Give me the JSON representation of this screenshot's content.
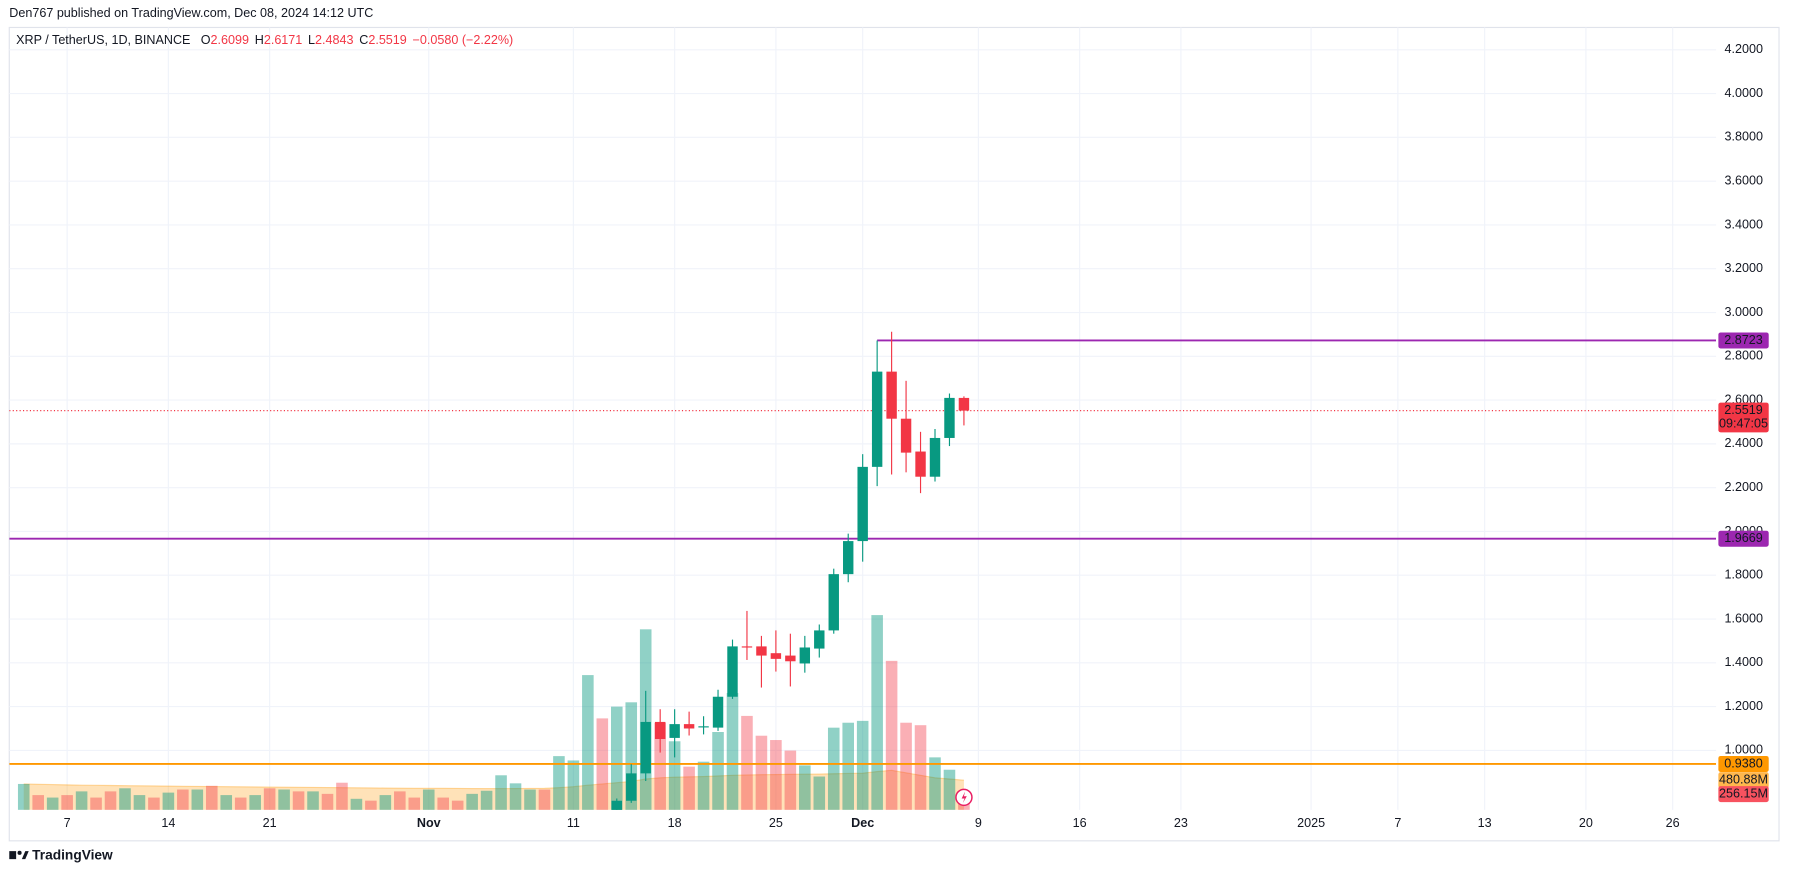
{
  "publisher_line": "Den767 published on TradingView.com, Dec 08, 2024 14:12 UTC",
  "footer_brand": "TradingView",
  "chart_data": {
    "type": "candlestick",
    "symbol": "XRP / TetherUS, 1D, BINANCE",
    "header_fields": [
      {
        "label": "O",
        "value": "2.6099"
      },
      {
        "label": "H",
        "value": "2.6171"
      },
      {
        "label": "L",
        "value": "2.4843"
      },
      {
        "label": "C",
        "value": "2.5519"
      }
    ],
    "change": "−0.0580 (−2.22%)",
    "up_color": "#089981",
    "down_color": "#f23645",
    "xlim": [
      "2024-10-03",
      "2025-01-29"
    ],
    "ylim": [
      0.728,
      4.302
    ],
    "yticks": [
      {
        "value": 1.0,
        "label": "1.0000"
      },
      {
        "value": 1.2,
        "label": "1.2000"
      },
      {
        "value": 1.4,
        "label": "1.4000"
      },
      {
        "value": 1.6,
        "label": "1.6000"
      },
      {
        "value": 1.8,
        "label": "1.8000"
      },
      {
        "value": 2.0,
        "label": "2.0000"
      },
      {
        "value": 2.2,
        "label": "2.2000"
      },
      {
        "value": 2.4,
        "label": "2.4000"
      },
      {
        "value": 2.6,
        "label": "2.6000"
      },
      {
        "value": 2.8,
        "label": "2.8000"
      },
      {
        "value": 3.0,
        "label": "3.0000"
      },
      {
        "value": 3.2,
        "label": "3.2000"
      },
      {
        "value": 3.4,
        "label": "3.4000"
      },
      {
        "value": 3.6,
        "label": "3.6000"
      },
      {
        "value": 3.8,
        "label": "3.8000"
      },
      {
        "value": 4.0,
        "label": "4.0000"
      },
      {
        "value": 4.2,
        "label": "4.2000"
      }
    ],
    "xticks": [
      {
        "value": "2024-10-07",
        "label": "7"
      },
      {
        "value": "2024-10-14",
        "label": "14"
      },
      {
        "value": "2024-10-21",
        "label": "21"
      },
      {
        "value": "2024-11-01",
        "label": "Nov"
      },
      {
        "value": "2024-11-11",
        "label": "11"
      },
      {
        "value": "2024-11-18",
        "label": "18"
      },
      {
        "value": "2024-11-25",
        "label": "25"
      },
      {
        "value": "2024-12-01",
        "label": "Dec"
      },
      {
        "value": "2024-12-09",
        "label": "9"
      },
      {
        "value": "2024-12-16",
        "label": "16"
      },
      {
        "value": "2024-12-23",
        "label": "23"
      },
      {
        "value": "2025-01-01",
        "label": "2025"
      },
      {
        "value": "2025-01-07",
        "label": "7"
      },
      {
        "value": "2025-01-13",
        "label": "13"
      },
      {
        "value": "2025-01-20",
        "label": "20"
      },
      {
        "value": "2025-01-26",
        "label": "26"
      }
    ],
    "grid": true,
    "x": [
      "2024-11-14",
      "2024-11-15",
      "2024-11-16",
      "2024-11-17",
      "2024-11-18",
      "2024-11-19",
      "2024-11-20",
      "2024-11-21",
      "2024-11-22",
      "2024-11-23",
      "2024-11-24",
      "2024-11-25",
      "2024-11-26",
      "2024-11-27",
      "2024-11-28",
      "2024-11-29",
      "2024-11-30",
      "2024-12-01",
      "2024-12-02",
      "2024-12-03",
      "2024-12-04",
      "2024-12-05",
      "2024-12-06",
      "2024-12-07",
      "2024-12-08"
    ],
    "open": [
      0.71,
      0.77,
      0.895,
      1.13,
      1.057,
      1.12,
      1.105,
      1.104,
      1.245,
      1.475,
      1.475,
      1.444,
      1.433,
      1.397,
      1.465,
      1.548,
      1.805,
      1.956,
      2.295,
      2.73,
      2.515,
      2.365,
      2.25,
      2.427,
      2.6099
    ],
    "high": [
      0.78,
      0.937,
      1.272,
      1.188,
      1.188,
      1.177,
      1.156,
      1.277,
      1.506,
      1.637,
      1.523,
      1.548,
      1.533,
      1.523,
      1.575,
      1.83,
      1.99,
      2.353,
      2.8723,
      2.912,
      2.688,
      2.455,
      2.468,
      2.63,
      2.6171
    ],
    "low": [
      0.69,
      0.76,
      0.86,
      0.99,
      0.968,
      1.068,
      1.073,
      1.089,
      1.235,
      1.413,
      1.287,
      1.36,
      1.292,
      1.355,
      1.424,
      1.533,
      1.768,
      1.862,
      2.207,
      2.26,
      2.27,
      2.175,
      2.228,
      2.39,
      2.4843
    ],
    "close": [
      0.77,
      0.895,
      1.13,
      1.052,
      1.12,
      1.1,
      1.11,
      1.245,
      1.475,
      1.47,
      1.433,
      1.418,
      1.407,
      1.47,
      1.548,
      1.805,
      1.956,
      2.295,
      2.73,
      2.515,
      2.36,
      2.25,
      2.427,
      2.61,
      2.5519
    ],
    "levels": [
      {
        "value": 2.8723,
        "label": "2.8723",
        "color": "#9c27b0",
        "start": "2024-12-02"
      },
      {
        "value": 1.9669,
        "label": "1.9669",
        "color": "#9c27b0"
      },
      {
        "value": 0.938,
        "label": "0.9380",
        "color": "#ff9800"
      }
    ],
    "last_price": {
      "value": 2.5519,
      "countdown": "09:47:05"
    },
    "volume": {
      "vlim": [
        0,
        12650
      ],
      "x": [
        "2024-10-04",
        "2024-10-05",
        "2024-10-06",
        "2024-10-07",
        "2024-10-08",
        "2024-10-09",
        "2024-10-10",
        "2024-10-11",
        "2024-10-12",
        "2024-10-13",
        "2024-10-14",
        "2024-10-15",
        "2024-10-16",
        "2024-10-17",
        "2024-10-18",
        "2024-10-19",
        "2024-10-20",
        "2024-10-21",
        "2024-10-22",
        "2024-10-23",
        "2024-10-24",
        "2024-10-25",
        "2024-10-26",
        "2024-10-27",
        "2024-10-28",
        "2024-10-29",
        "2024-10-30",
        "2024-10-31",
        "2024-11-01",
        "2024-11-02",
        "2024-11-03",
        "2024-11-04",
        "2024-11-05",
        "2024-11-06",
        "2024-11-07",
        "2024-11-08",
        "2024-11-09",
        "2024-11-10",
        "2024-11-11",
        "2024-11-12",
        "2024-11-13",
        "2024-11-14",
        "2024-11-15",
        "2024-11-16",
        "2024-11-17",
        "2024-11-18",
        "2024-11-19",
        "2024-11-20",
        "2024-11-21",
        "2024-11-22",
        "2024-11-23",
        "2024-11-24",
        "2024-11-25",
        "2024-11-26",
        "2024-11-27",
        "2024-11-28",
        "2024-11-29",
        "2024-11-30",
        "2024-12-01",
        "2024-12-02",
        "2024-12-03",
        "2024-12-04",
        "2024-12-05",
        "2024-12-06",
        "2024-12-07",
        "2024-12-08"
      ],
      "values": [
        420,
        240,
        200,
        240,
        300,
        200,
        300,
        350,
        240,
        200,
        280,
        330,
        330,
        390,
        240,
        200,
        240,
        350,
        330,
        300,
        300,
        260,
        440,
        180,
        150,
        240,
        300,
        200,
        330,
        200,
        150,
        260,
        310,
        560,
        430,
        330,
        330,
        870,
        800,
        2180,
        1480,
        1670,
        1740,
        2920,
        1410,
        1110,
        700,
        780,
        1260,
        1890,
        1520,
        1200,
        1130,
        960,
        720,
        540,
        1330,
        1410,
        1440,
        3150,
        2410,
        1410,
        1370,
        850,
        650,
        256.15
      ],
      "colors": [
        "#08998173",
        "#f2364566",
        "#08998173",
        "#f2364566",
        "#08998173",
        "#f2364566",
        "#f2364566",
        "#08998173",
        "#08998173",
        "#f2364566",
        "#08998173",
        "#f2364566",
        "#08998173",
        "#f2364566",
        "#08998173",
        "#f2364566",
        "#08998173",
        "#f2364566",
        "#08998173",
        "#f2364566",
        "#08998173",
        "#f2364566",
        "#f2364566",
        "#08998173",
        "#f2364566",
        "#08998173",
        "#f2364566",
        "#f2364566",
        "#08998173",
        "#f2364566",
        "#f2364566",
        "#08998173",
        "#08998173",
        "#08998173",
        "#08998173",
        "#08998173",
        "#f2364566",
        "#08998173",
        "#08998173",
        "#08998173",
        "#f2364566",
        "#08998173",
        "#08998173",
        "#08998173",
        "#f2364566",
        "#08998173",
        "#f2364566",
        "#08998173",
        "#08998173",
        "#08998173",
        "#f2364566",
        "#f2364566",
        "#f2364566",
        "#f2364566",
        "#08998173",
        "#08998173",
        "#08998173",
        "#08998173",
        "#08998173",
        "#08998173",
        "#f2364566",
        "#f2364566",
        "#f2364566",
        "#08998173",
        "#08998173",
        "#f2364566"
      ],
      "last_label": "256.15M"
    },
    "volume_ma": {
      "color": "#ff9800",
      "values": [
        420,
        415,
        410,
        405,
        400,
        398,
        395,
        392,
        390,
        388,
        385,
        382,
        380,
        378,
        376,
        374,
        372,
        370,
        368,
        366,
        364,
        362,
        360,
        358,
        356,
        354,
        352,
        350,
        350,
        350,
        348,
        346,
        345,
        345,
        346,
        348,
        350,
        360,
        375,
        400,
        420,
        440,
        460,
        500,
        520,
        530,
        535,
        540,
        550,
        560,
        565,
        570,
        572,
        575,
        578,
        580,
        585,
        590,
        595,
        620,
        640,
        600,
        560,
        520,
        500,
        480.88
      ],
      "last_label": "480.88M"
    }
  }
}
